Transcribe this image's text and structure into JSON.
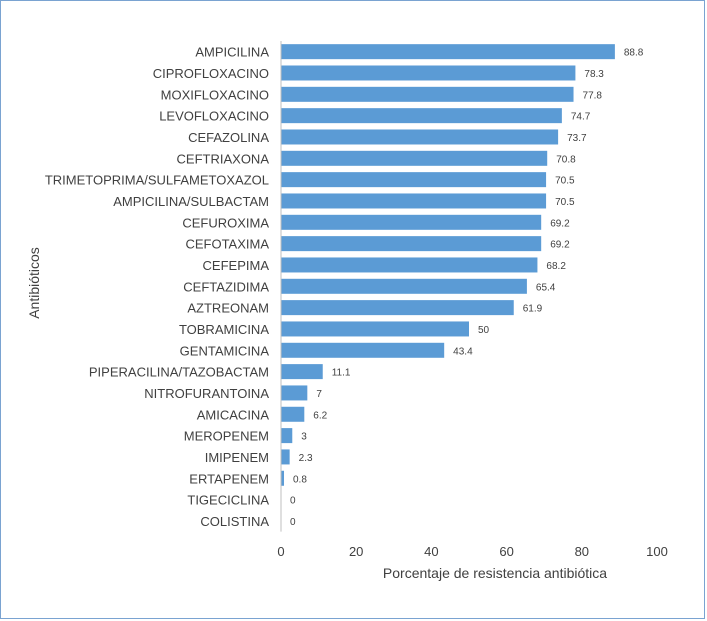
{
  "chart_data": {
    "type": "bar",
    "orientation": "horizontal",
    "categories": [
      "AMPICILINA",
      "CIPROFLOXACINO",
      "MOXIFLOXACINO",
      "LEVOFLOXACINO",
      "CEFAZOLINA",
      "CEFTRIAXONA",
      "TRIMETOPRIMA/SULFAMETOXAZOL",
      "AMPICILINA/SULBACTAM",
      "CEFUROXIMA",
      "CEFOTAXIMA",
      "CEFEPIMA",
      "CEFTAZIDIMA",
      "AZTREONAM",
      "TOBRAMICINA",
      "GENTAMICINA",
      "PIPERACILINA/TAZOBACTAM",
      "NITROFURANTOINA",
      "AMICACINA",
      "MEROPENEM",
      "IMIPENEM",
      "ERTAPENEM",
      "TIGECICLINA",
      "COLISTINA"
    ],
    "values": [
      88.8,
      78.3,
      77.8,
      74.7,
      73.7,
      70.8,
      70.5,
      70.5,
      69.2,
      69.2,
      68.2,
      65.4,
      61.9,
      50,
      43.4,
      11.1,
      7,
      6.2,
      3,
      2.3,
      0.8,
      0,
      0
    ],
    "xlabel": "Porcentaje de resistencia antibiótica",
    "ylabel": "Antibióticos",
    "xlim": [
      0,
      100
    ],
    "xticks": [
      0,
      20,
      40,
      60,
      80,
      100
    ],
    "grid": false,
    "bar_color": "#5b9bd5"
  }
}
